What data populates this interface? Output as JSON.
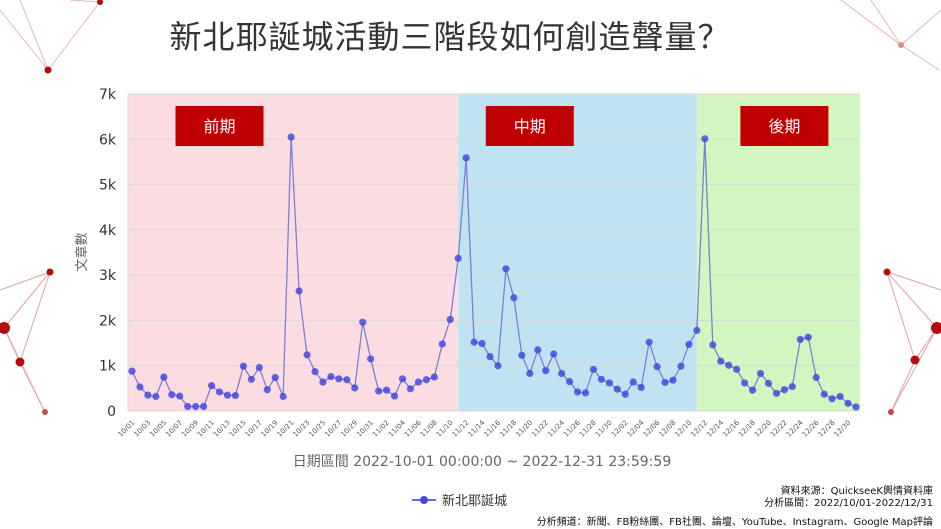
{
  "title": "新北耶誕城活動三階段如何創造聲量？",
  "legend_label": "新北耶誕城",
  "source": {
    "line1": "資料來源：QuickseeK輿情資料庫",
    "line2": "分析區間：2022/10/01-2022/12/31",
    "line3": "分析頻道：新聞、FB粉絲團、FB社團、論壇、YouTube、Instagram、Google Map評論"
  },
  "colors": {
    "line": "#7b7fd8",
    "marker": "#3e43e0",
    "phase_early": "#fbdde1",
    "phase_mid": "#c0e3f2",
    "phase_late": "#d3f5c0",
    "phase_label_bg": "#c00000",
    "deco_red": "#b10d0d"
  },
  "chart_data": {
    "type": "line",
    "xlabel": "日期區間 2022-10-01 00:00:00 ~ 2022-12-31 23:59:59",
    "ylabel": "文章數",
    "ylim": [
      0,
      7000
    ],
    "yticks": [
      "0",
      "1k",
      "2k",
      "3k",
      "4k",
      "5k",
      "6k",
      "7k"
    ],
    "x_tick_labels": [
      "10/01",
      "10/03",
      "10/05",
      "10/07",
      "10/09",
      "10/11",
      "10/13",
      "10/15",
      "10/17",
      "10/19",
      "10/21",
      "10/23",
      "10/25",
      "10/27",
      "10/29",
      "10/31",
      "11/02",
      "11/04",
      "11/06",
      "11/08",
      "11/10",
      "11/12",
      "11/14",
      "11/16",
      "11/18",
      "11/20",
      "11/22",
      "11/24",
      "11/26",
      "11/28",
      "11/30",
      "12/02",
      "12/04",
      "12/06",
      "12/08",
      "12/10",
      "12/12",
      "12/14",
      "12/16",
      "12/18",
      "12/20",
      "12/22",
      "12/24",
      "12/26",
      "12/28",
      "12/30"
    ],
    "phases": [
      {
        "label": "前期",
        "start": "10/01",
        "end": "11/11"
      },
      {
        "label": "中期",
        "start": "11/11",
        "end": "12/11"
      },
      {
        "label": "後期",
        "start": "12/11",
        "end": "12/31"
      }
    ],
    "series": [
      {
        "name": "新北耶誕城",
        "values": [
          880,
          530,
          350,
          320,
          750,
          360,
          330,
          100,
          100,
          100,
          560,
          420,
          350,
          340,
          990,
          700,
          960,
          470,
          740,
          320,
          6050,
          2650,
          1240,
          870,
          640,
          760,
          710,
          690,
          510,
          1960,
          1150,
          440,
          460,
          330,
          710,
          490,
          640,
          690,
          750,
          1480,
          2020,
          3370,
          5590,
          1520,
          1490,
          1200,
          1000,
          3140,
          2500,
          1230,
          830,
          1350,
          890,
          1260,
          830,
          650,
          420,
          400,
          920,
          700,
          620,
          480,
          370,
          640,
          520,
          1520,
          980,
          630,
          680,
          990,
          1470,
          1780,
          6010,
          1460,
          1100,
          1010,
          920,
          620,
          460,
          830,
          610,
          390,
          470,
          540,
          1580,
          1630,
          740,
          370,
          270,
          320,
          170,
          90
        ]
      }
    ]
  }
}
